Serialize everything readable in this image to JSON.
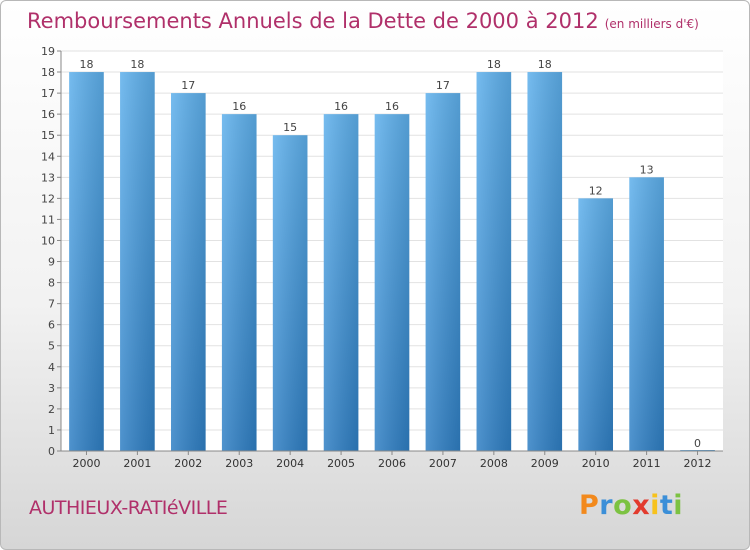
{
  "title": "Remboursements Annuels de la Dette de 2000 à 2012",
  "title_unit": "(en milliers d'€)",
  "commune": "AUTHIEUX-RATIéVILLE",
  "brand": {
    "letters": [
      "P",
      "r",
      "o",
      "x",
      "i",
      "t",
      "i"
    ],
    "colors": [
      "#f2891c",
      "#3b8fd8",
      "#7cc242",
      "#e23b2e",
      "#f7c21c",
      "#3b8fd8",
      "#7cc242"
    ]
  },
  "colors": {
    "bar": "#4a9ae0",
    "title": "#b0306a"
  },
  "chart_data": {
    "type": "bar",
    "categories": [
      "2000",
      "2001",
      "2002",
      "2003",
      "2004",
      "2005",
      "2006",
      "2007",
      "2008",
      "2009",
      "2010",
      "2011",
      "2012"
    ],
    "values": [
      18,
      18,
      17,
      16,
      15,
      16,
      16,
      17,
      18,
      18,
      12,
      13,
      0
    ],
    "ylim": [
      0,
      19
    ],
    "yticks": [
      0,
      1,
      2,
      3,
      4,
      5,
      6,
      7,
      8,
      9,
      10,
      11,
      12,
      13,
      14,
      15,
      16,
      17,
      18,
      19
    ],
    "grid": true
  }
}
